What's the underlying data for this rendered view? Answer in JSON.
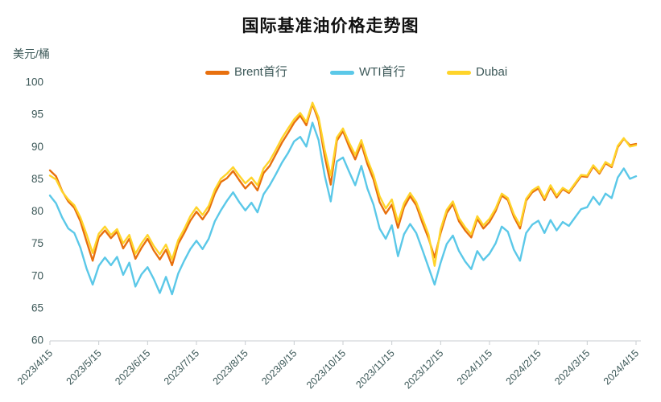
{
  "title": "国际基准油价格走势图",
  "y_unit": "美元/桶",
  "legend": [
    {
      "label": "Brent首行",
      "color": "#e8700e"
    },
    {
      "label": "WTI首行",
      "color": "#5bc8e8"
    },
    {
      "label": "Dubai",
      "color": "#ffd42a"
    }
  ],
  "colors": {
    "title": "#111111",
    "tick_text": "#3c5858",
    "axis_line": "#c8cdd1",
    "background": "#ffffff"
  },
  "chart_data": {
    "type": "line",
    "title": "国际基准油价格走势图",
    "ylabel": "美元/桶",
    "xlabel": "",
    "ylim": [
      60,
      100
    ],
    "yticks": [
      100,
      95,
      90,
      85,
      80,
      75,
      70,
      65,
      60
    ],
    "grid": false,
    "legend_position": "top",
    "x_tick_labels": [
      "2023/4/15",
      "2023/5/15",
      "2023/6/15",
      "2023/7/15",
      "2023/8/15",
      "2023/9/15",
      "2023/10/15",
      "2023/11/15",
      "2023/12/15",
      "2024/1/15",
      "2024/2/15",
      "2024/3/15",
      "2024/4/15"
    ],
    "series": [
      {
        "name": "Brent首行",
        "color": "#e8700e",
        "values": [
          86.3,
          85.4,
          83.1,
          81.5,
          80.5,
          78.4,
          75.3,
          72.3,
          75.9,
          77.0,
          75.8,
          76.8,
          74.2,
          75.7,
          72.6,
          74.3,
          75.7,
          73.9,
          72.5,
          74.0,
          71.6,
          74.9,
          76.6,
          78.5,
          79.9,
          78.7,
          80.1,
          82.7,
          84.5,
          85.1,
          86.2,
          84.8,
          83.5,
          84.5,
          83.2,
          85.9,
          87.0,
          88.8,
          90.6,
          92.1,
          93.7,
          94.8,
          93.3,
          96.6,
          94.0,
          88.5,
          84.1,
          90.9,
          92.4,
          90.0,
          88.0,
          90.4,
          87.3,
          84.9,
          81.4,
          79.6,
          81.0,
          77.4,
          80.6,
          82.3,
          80.9,
          78.2,
          75.8,
          72.8,
          76.6,
          79.7,
          81.1,
          78.4,
          77.0,
          75.9,
          78.8,
          77.3,
          78.3,
          80.0,
          82.4,
          81.7,
          79.1,
          77.3,
          81.6,
          82.9,
          83.5,
          81.7,
          83.7,
          82.1,
          83.4,
          82.8,
          84.1,
          85.4,
          85.3,
          86.9,
          85.8,
          87.4,
          86.8,
          89.9,
          91.2,
          90.2,
          90.4
        ]
      },
      {
        "name": "WTI首行",
        "color": "#5bc8e8",
        "values": [
          82.4,
          81.2,
          79.0,
          77.3,
          76.6,
          74.3,
          71.1,
          68.6,
          71.5,
          72.8,
          71.6,
          72.9,
          70.1,
          72.0,
          68.3,
          70.2,
          71.3,
          69.5,
          67.3,
          69.8,
          67.1,
          70.3,
          72.3,
          74.1,
          75.4,
          74.1,
          75.7,
          78.4,
          80.1,
          81.6,
          82.9,
          81.4,
          80.1,
          81.3,
          79.8,
          82.6,
          84.0,
          85.7,
          87.5,
          89.0,
          90.8,
          91.5,
          90.0,
          93.7,
          91.0,
          85.5,
          81.5,
          87.7,
          88.3,
          86.1,
          84.0,
          87.0,
          83.5,
          81.0,
          77.3,
          75.7,
          77.8,
          73.0,
          76.4,
          78.0,
          76.6,
          74.0,
          71.3,
          68.6,
          72.0,
          74.9,
          76.2,
          73.8,
          72.2,
          71.0,
          73.8,
          72.4,
          73.4,
          75.0,
          77.6,
          76.8,
          74.0,
          72.3,
          76.6,
          77.9,
          78.5,
          76.6,
          78.6,
          77.0,
          78.3,
          77.7,
          79.0,
          80.3,
          80.6,
          82.2,
          81.0,
          82.7,
          82.0,
          85.2,
          86.6,
          85.0,
          85.4
        ]
      },
      {
        "name": "Dubai",
        "color": "#ffd42a",
        "values": [
          85.5,
          84.9,
          83.0,
          81.8,
          80.9,
          79.0,
          76.4,
          73.5,
          76.5,
          77.6,
          76.3,
          77.2,
          75.0,
          76.3,
          73.4,
          75.0,
          76.3,
          74.6,
          73.3,
          74.8,
          72.5,
          75.5,
          77.2,
          79.2,
          80.6,
          79.4,
          80.8,
          83.3,
          85.0,
          85.8,
          86.8,
          85.5,
          84.3,
          85.2,
          84.0,
          86.6,
          87.8,
          89.5,
          91.3,
          92.8,
          94.2,
          95.2,
          93.8,
          96.8,
          94.5,
          89.5,
          85.5,
          91.4,
          92.8,
          90.6,
          88.7,
          91.0,
          88.0,
          85.6,
          82.3,
          80.4,
          81.8,
          78.3,
          81.2,
          82.8,
          81.4,
          78.9,
          76.4,
          71.5,
          77.2,
          80.2,
          81.5,
          78.9,
          77.5,
          76.4,
          79.2,
          77.8,
          78.8,
          80.4,
          82.7,
          82.0,
          79.5,
          77.8,
          81.9,
          83.2,
          83.8,
          82.0,
          84.0,
          82.4,
          83.6,
          83.0,
          84.3,
          85.6,
          85.5,
          87.1,
          86.0,
          87.6,
          87.0,
          90.1,
          91.3,
          90.0,
          90.2
        ]
      }
    ]
  }
}
